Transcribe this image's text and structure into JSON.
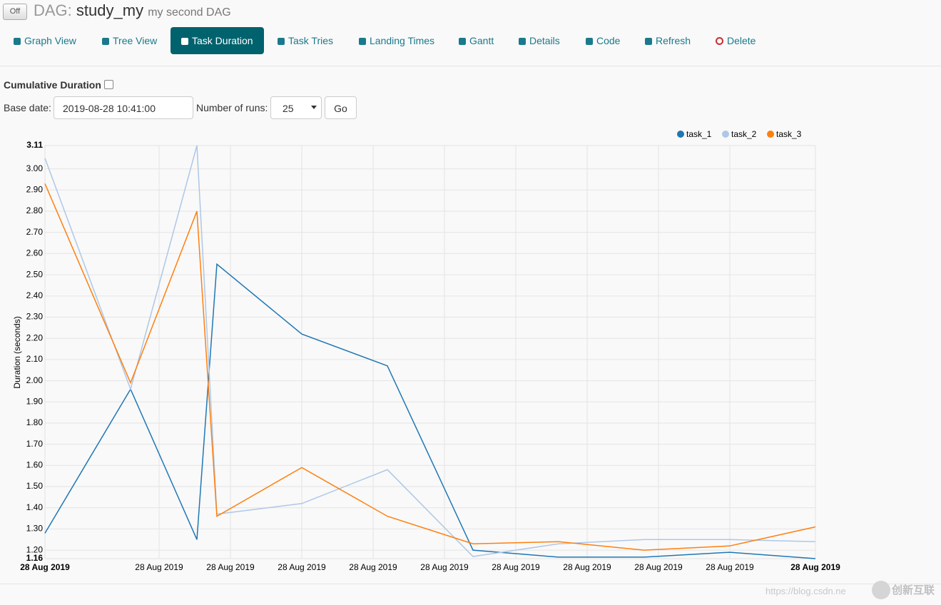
{
  "header": {
    "toggle": "Off",
    "prefix": "DAG:",
    "dag_id": "study_my",
    "description": "my second DAG"
  },
  "nav": [
    "Graph View",
    "Tree View",
    "Task Duration",
    "Task Tries",
    "Landing Times",
    "Gantt",
    "Details",
    "Code",
    "Refresh",
    "Delete"
  ],
  "form": {
    "cumulative_label": "Cumulative Duration",
    "base_date_label": "Base date:",
    "base_date": "2019-08-28 10:41:00",
    "runs_label": "Number of runs:",
    "runs": "25",
    "go": "Go"
  },
  "watermark": {
    "url": "https://blog.csdn.ne",
    "brand": "创新互联"
  },
  "chart_data": {
    "type": "line",
    "y_label": "Duration (seconds)",
    "x": [
      0,
      120,
      213,
      241,
      360,
      480,
      600,
      720,
      840,
      960,
      1080
    ],
    "xlim": [
      0,
      1080
    ],
    "xticks": [
      {
        "value": 0,
        "label": "28 Aug 2019"
      },
      {
        "value": 160,
        "label": "28 Aug 2019"
      },
      {
        "value": 260,
        "label": "28 Aug 2019"
      },
      {
        "value": 360,
        "label": "28 Aug 2019"
      },
      {
        "value": 460,
        "label": "28 Aug 2019"
      },
      {
        "value": 560,
        "label": "28 Aug 2019"
      },
      {
        "value": 660,
        "label": "28 Aug 2019"
      },
      {
        "value": 760,
        "label": "28 Aug 2019"
      },
      {
        "value": 860,
        "label": "28 Aug 2019"
      },
      {
        "value": 960,
        "label": "28 Aug 2019"
      },
      {
        "value": 1080,
        "label": "28 Aug 2019"
      }
    ],
    "ylim": [
      1.16,
      3.11
    ],
    "yticks": [
      1.16,
      {
        "value": 1.2,
        "label": "1.20"
      },
      {
        "value": 1.3,
        "label": "1.30"
      },
      {
        "value": 1.4,
        "label": "1.40"
      },
      {
        "value": 1.5,
        "label": "1.50"
      },
      {
        "value": 1.6,
        "label": "1.60"
      },
      {
        "value": 1.7,
        "label": "1.70"
      },
      {
        "value": 1.8,
        "label": "1.80"
      },
      {
        "value": 1.9,
        "label": "1.90"
      },
      {
        "value": 2.0,
        "label": "2.00"
      },
      {
        "value": 2.1,
        "label": "2.10"
      },
      {
        "value": 2.2,
        "label": "2.20"
      },
      {
        "value": 2.3,
        "label": "2.30"
      },
      {
        "value": 2.4,
        "label": "2.40"
      },
      {
        "value": 2.5,
        "label": "2.50"
      },
      {
        "value": 2.6,
        "label": "2.60"
      },
      {
        "value": 2.7,
        "label": "2.70"
      },
      {
        "value": 2.8,
        "label": "2.80"
      },
      {
        "value": 2.9,
        "label": "2.90"
      },
      {
        "value": 3.0,
        "label": "3.00"
      },
      3.11
    ],
    "grid": true,
    "series": [
      {
        "name": "task_1",
        "color": "#1f77b4",
        "values": [
          1.28,
          1.96,
          1.25,
          2.55,
          2.22,
          2.07,
          1.2,
          1.167,
          1.167,
          1.19,
          1.16
        ]
      },
      {
        "name": "task_2",
        "color": "#aec7e8",
        "values": [
          3.05,
          1.96,
          3.11,
          1.37,
          1.42,
          1.58,
          1.17,
          1.23,
          1.25,
          1.25,
          1.24
        ]
      },
      {
        "name": "task_3",
        "color": "#ff7f0e",
        "values": [
          2.93,
          1.99,
          2.8,
          1.36,
          1.59,
          1.36,
          1.23,
          1.24,
          1.2,
          1.22,
          1.31
        ]
      }
    ]
  }
}
